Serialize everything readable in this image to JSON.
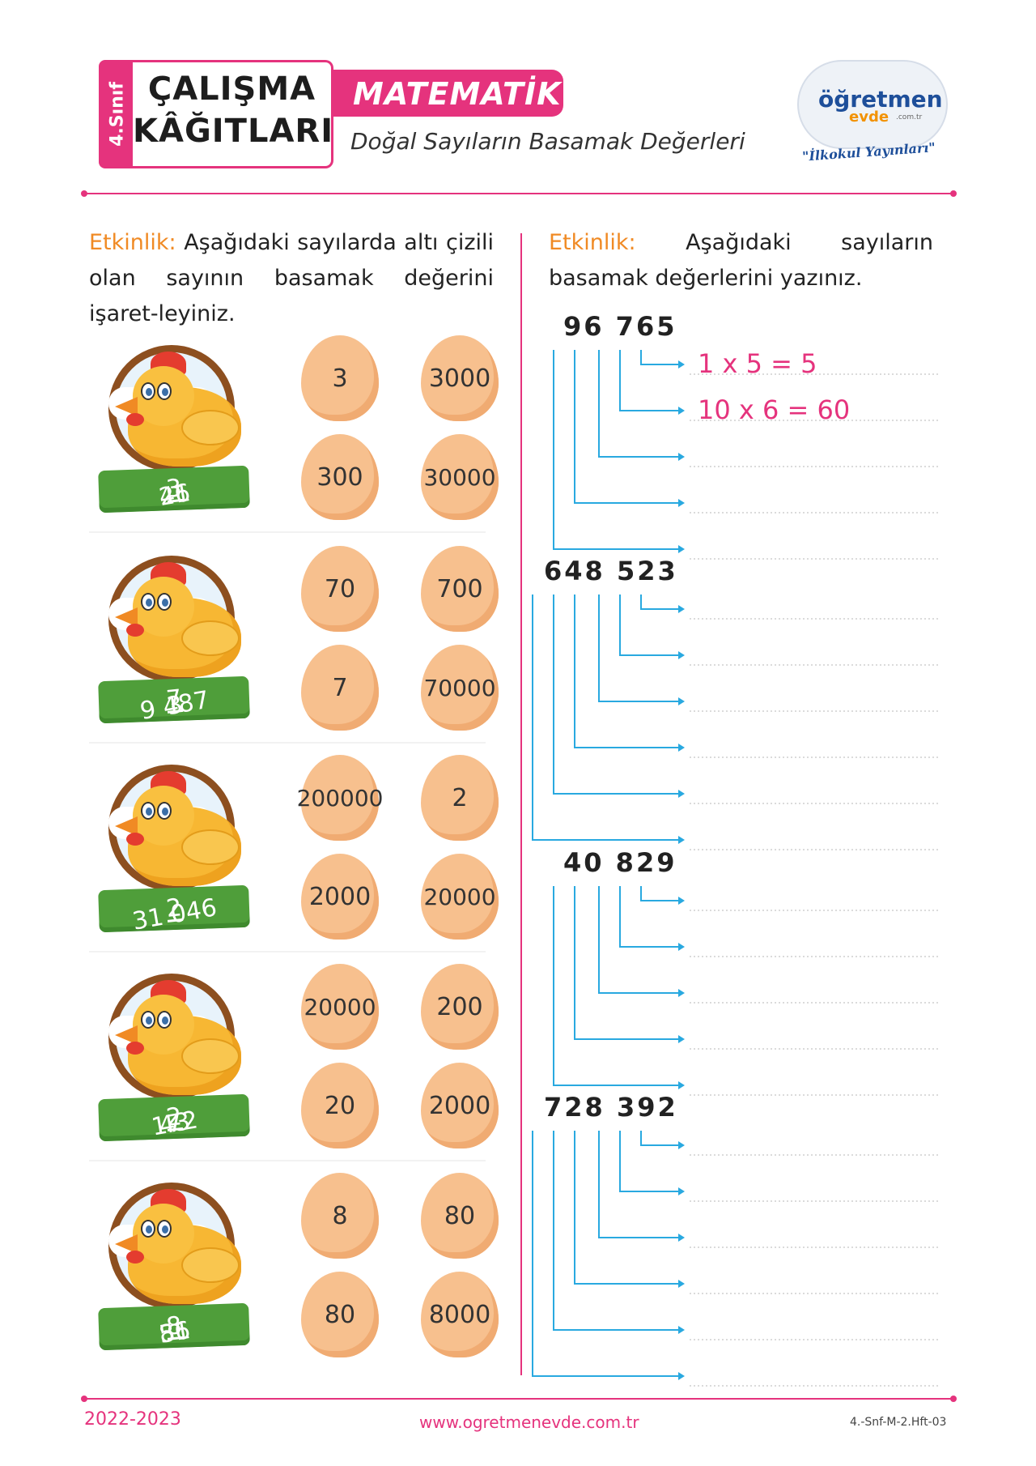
{
  "header": {
    "grade": "4.Sınıf",
    "title_line1": "ÇALIŞMA",
    "title_line2": "KÂĞITLARI",
    "subject": "MATEMATİK",
    "subtitle": "Doğal Sayıların Basamak Değerleri",
    "logo_main": "öğretmen",
    "logo_sub": "evde",
    "logo_domain": ".com.tr",
    "logo_tagline": "\"İlkokul Yayınları\""
  },
  "left_activity": {
    "label": "Etkinlik:",
    "text": "Aşağıdaki sayılarda altı çizili olan sayının basamak değerini işaret-leyiniz.",
    "items": [
      {
        "pre": "46 ",
        "underlined": "3",
        "post": "21",
        "options": [
          "3",
          "3000",
          "300",
          "30000"
        ]
      },
      {
        "pre": "3",
        "underlined": "7",
        "post": "9 487",
        "options": [
          "70",
          "700",
          "7",
          "70000"
        ]
      },
      {
        "pre": "",
        "underlined": "2",
        "post": "31 046",
        "options": [
          "200000",
          "2",
          "2000",
          "20000"
        ]
      },
      {
        "pre": "43",
        "underlined": "2",
        "post": " 172",
        "options": [
          "20000",
          "200",
          "20",
          "2000"
        ]
      },
      {
        "pre": "56 ",
        "underlined": "8",
        "post": "81",
        "options": [
          "8",
          "80",
          "80",
          "8000"
        ]
      }
    ]
  },
  "right_activity": {
    "label": "Etkinlik:",
    "text": "Aşağıdaki sayıların basamak değerlerini yazınız.",
    "numbers": [
      "96 765",
      "648 523",
      "40 829",
      "728 392"
    ],
    "examples": [
      "1 x 5   = 5",
      "10 x 6 = 60"
    ]
  },
  "footer": {
    "year": "2022-2023",
    "url": "www.ogretmenevde.com.tr",
    "code": "4.-Snf-M-2.Hft-03"
  },
  "colors": {
    "accent": "#e5337d",
    "label_orange": "#f08a24",
    "arrow_blue": "#29a9e0",
    "egg": "#f7c08e",
    "ribbon": "#4f9e3a"
  }
}
